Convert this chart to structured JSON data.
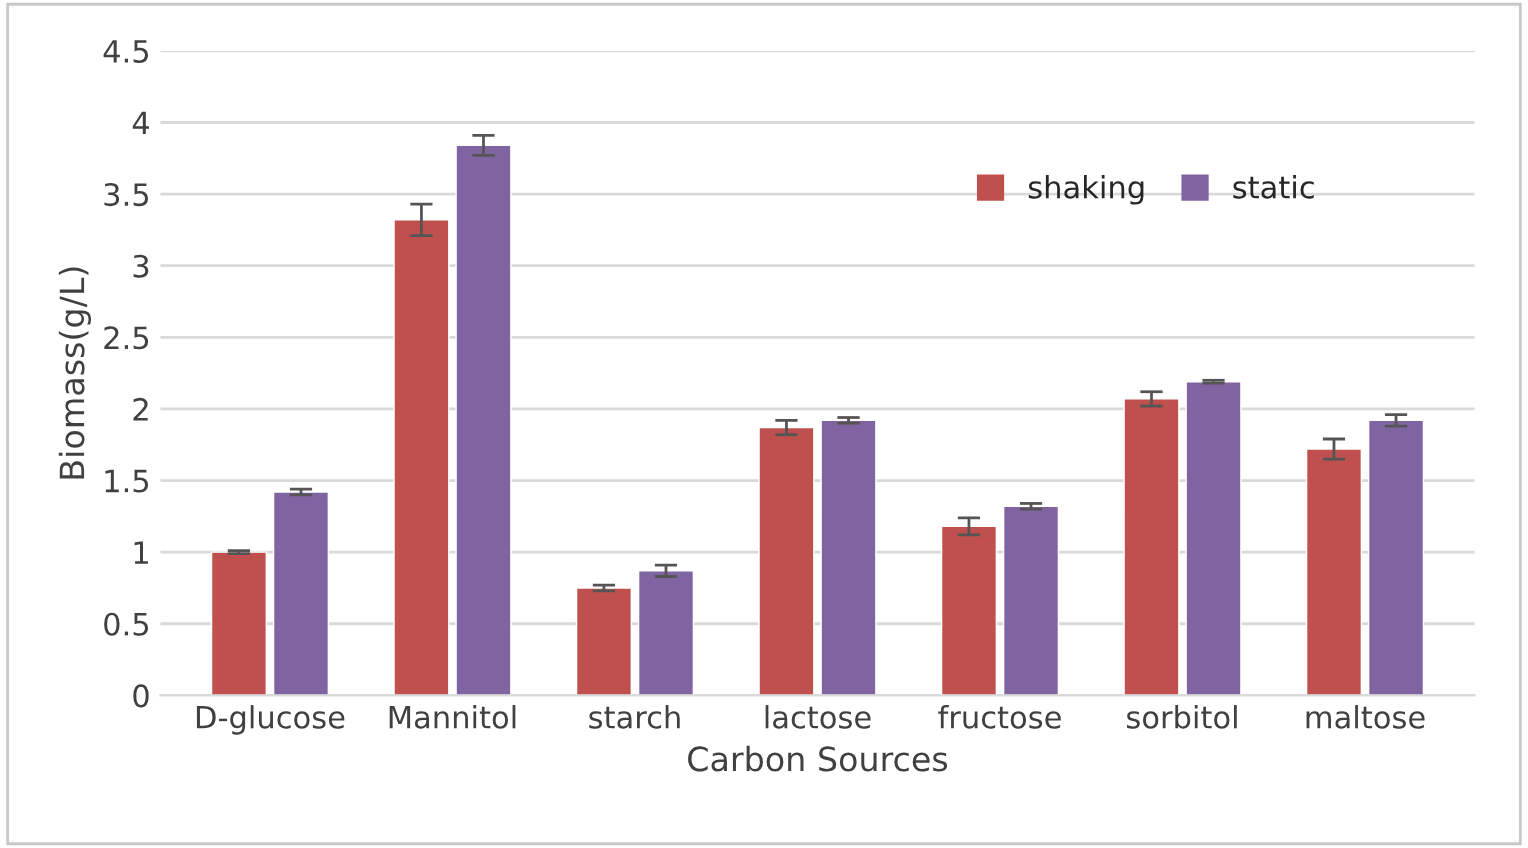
{
  "chart_data": {
    "type": "bar",
    "xlabel": "Carbon Sources",
    "ylabel": "Biomass(g/L)",
    "categories": [
      "D-glucose",
      "Mannitol",
      "starch",
      "lactose",
      "fructose",
      "sorbitol",
      "maltose"
    ],
    "series": [
      {
        "name": "shaking",
        "color": "#c0504d",
        "values": [
          1.0,
          3.32,
          0.75,
          1.87,
          1.18,
          2.07,
          1.72
        ],
        "errors": [
          0.01,
          0.11,
          0.02,
          0.05,
          0.06,
          0.05,
          0.07
        ]
      },
      {
        "name": "static",
        "color": "#8064a2",
        "values": [
          1.42,
          3.84,
          0.87,
          1.92,
          1.32,
          2.19,
          1.92
        ],
        "errors": [
          0.02,
          0.07,
          0.04,
          0.02,
          0.02,
          0.01,
          0.04
        ]
      }
    ],
    "ylim": [
      0,
      4.5
    ],
    "yticks": [
      0,
      0.5,
      1,
      1.5,
      2,
      2.5,
      3,
      3.5,
      4,
      4.5
    ],
    "grid": "y",
    "legend": "top right"
  }
}
